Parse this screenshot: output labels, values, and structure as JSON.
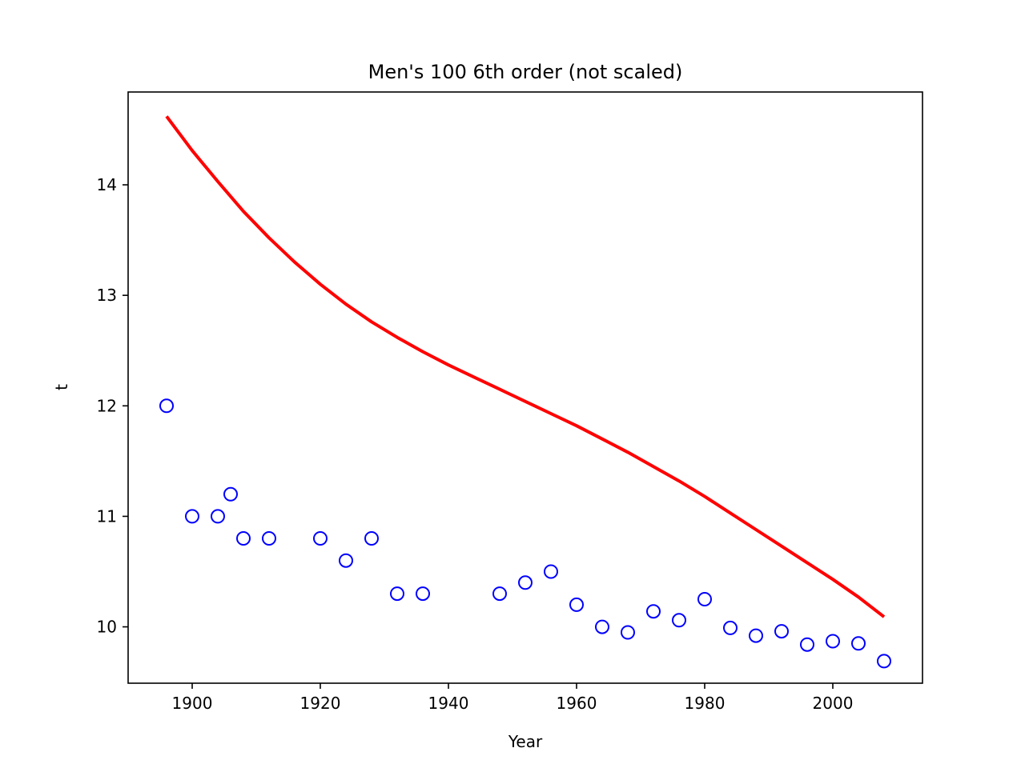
{
  "chart_data": {
    "type": "scatter",
    "title": "Men's 100 6th order (not scaled)",
    "xlabel": "Year",
    "ylabel": "t",
    "xlim": [
      1890,
      2014
    ],
    "ylim": [
      9.49,
      14.84
    ],
    "xticks": [
      1900,
      1920,
      1940,
      1960,
      1980,
      2000
    ],
    "yticks": [
      10,
      11,
      12,
      13,
      14
    ],
    "grid": false,
    "legend": "none",
    "series": [
      {
        "kind": "scatter",
        "marker": "open-circle",
        "color": "#0000ff",
        "x": [
          1896,
          1900,
          1904,
          1906,
          1908,
          1912,
          1920,
          1924,
          1928,
          1932,
          1936,
          1948,
          1952,
          1956,
          1960,
          1964,
          1968,
          1972,
          1976,
          1980,
          1984,
          1988,
          1992,
          1996,
          2000,
          2004,
          2008
        ],
        "y": [
          12.0,
          11.0,
          11.0,
          11.2,
          10.8,
          10.8,
          10.8,
          10.6,
          10.8,
          10.3,
          10.3,
          10.3,
          10.4,
          10.5,
          10.2,
          10.0,
          9.95,
          10.14,
          10.06,
          10.25,
          9.99,
          9.92,
          9.96,
          9.84,
          9.87,
          9.85,
          9.69
        ]
      },
      {
        "kind": "line",
        "color": "#ff0000",
        "x": [
          1896,
          1900,
          1904,
          1908,
          1912,
          1916,
          1920,
          1924,
          1928,
          1932,
          1936,
          1940,
          1944,
          1948,
          1952,
          1956,
          1960,
          1964,
          1968,
          1972,
          1976,
          1980,
          1984,
          1988,
          1992,
          1996,
          2000,
          2004,
          2008
        ],
        "y": [
          14.62,
          14.31,
          14.03,
          13.76,
          13.52,
          13.3,
          13.1,
          12.92,
          12.76,
          12.62,
          12.49,
          12.37,
          12.26,
          12.15,
          12.04,
          11.93,
          11.82,
          11.7,
          11.58,
          11.45,
          11.32,
          11.18,
          11.03,
          10.88,
          10.73,
          10.58,
          10.43,
          10.27,
          10.09
        ]
      }
    ]
  }
}
